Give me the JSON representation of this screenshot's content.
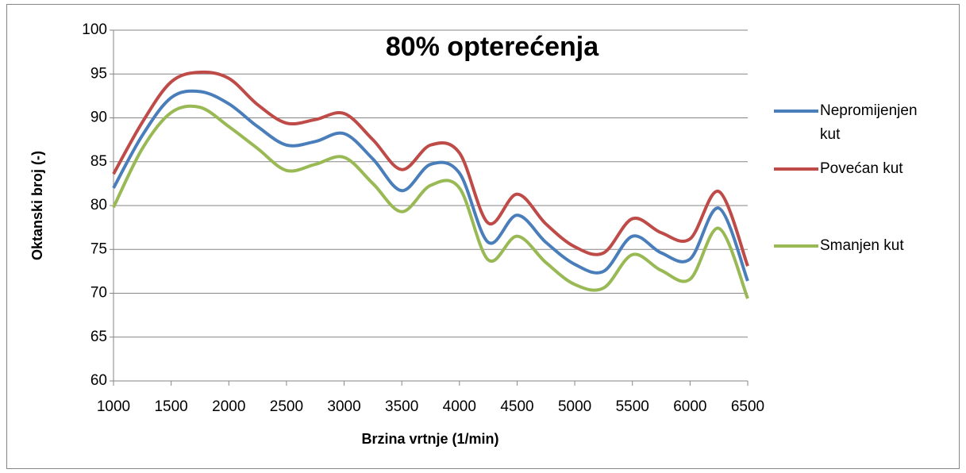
{
  "chart_data": {
    "type": "line",
    "title": "80% opterećenja",
    "x_label": "Brzina vrtnje (1/min)",
    "y_label": "Oktanski broj (-)",
    "x": [
      1000,
      1250,
      1500,
      1750,
      2000,
      2250,
      2500,
      2750,
      3000,
      3250,
      3500,
      3750,
      4000,
      4250,
      4500,
      4750,
      5000,
      5250,
      5500,
      5750,
      6000,
      6250,
      6500
    ],
    "xlim": [
      1000,
      6500
    ],
    "xticks": [
      1000,
      1500,
      2000,
      2500,
      3000,
      3500,
      4000,
      4500,
      5000,
      5500,
      6000,
      6500
    ],
    "ylim": [
      60,
      100
    ],
    "yticks": [
      60,
      65,
      70,
      75,
      80,
      85,
      90,
      95,
      100
    ],
    "grid": true,
    "smooth": true,
    "legend": "right",
    "series": [
      {
        "name": "Nepromijenjen kut",
        "color": "#4a7ebb",
        "values": [
          82,
          88,
          92.3,
          93.0,
          91.6,
          89,
          86.9,
          87.3,
          88.2,
          85.3,
          81.7,
          84.7,
          83.7,
          75.8,
          78.9,
          75.8,
          73.3,
          72.5,
          76.5,
          74.6,
          73.9,
          79.7,
          71.4
        ]
      },
      {
        "name": "Povećan kut",
        "color": "#be4b48",
        "values": [
          83.6,
          89.5,
          94.1,
          95.2,
          94.5,
          91.5,
          89.4,
          89.8,
          90.5,
          87.5,
          84.1,
          86.9,
          86.0,
          78.0,
          81.3,
          77.9,
          75.3,
          74.6,
          78.5,
          76.9,
          76.2,
          81.6,
          73.1
        ]
      },
      {
        "name": "Smanjen kut",
        "color": "#98b954",
        "values": [
          79.8,
          86.5,
          90.6,
          91.2,
          89.0,
          86.5,
          84.0,
          84.7,
          85.5,
          82.5,
          79.3,
          82.3,
          82.0,
          73.8,
          76.5,
          73.5,
          71.0,
          70.6,
          74.4,
          72.6,
          71.6,
          77.4,
          69.4
        ]
      }
    ]
  }
}
